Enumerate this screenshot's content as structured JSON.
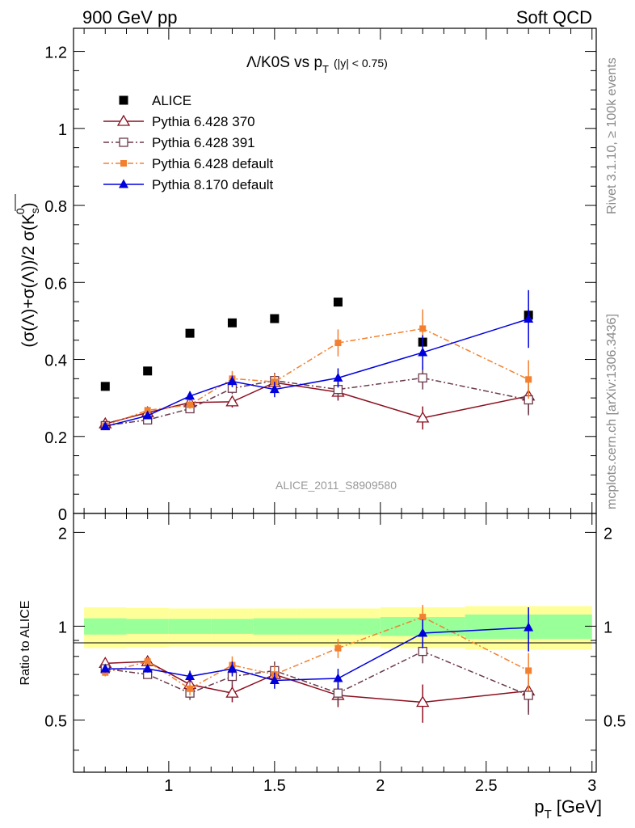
{
  "header": {
    "left": "900 GeV pp",
    "right": "Soft QCD"
  },
  "side_labels": {
    "rivet": "Rivet 3.1.10, ≥ 100k events",
    "mcplots": "mcplots.cern.ch [arXiv:1306.3436]"
  },
  "watermark": "ALICE_2011_S8909580",
  "colors": {
    "alice": "#000000",
    "py370": "#8b0f1f",
    "py391": "#6b3a4a",
    "py6def": "#f28030",
    "py8def": "#0000dd",
    "band_inner": "#99ff99",
    "band_outer": "#ffff99"
  },
  "chart_data": [
    {
      "type": "scatter",
      "title": "Λ/K0S vs p",
      "title_sub": "T",
      "title_cut": "(|y| < 0.75)",
      "ylabel": "(σ(Λ)+σ(Λ))/2 σ(K",
      "ylabel_sub": "s",
      "ylabel_sup": "0",
      "ylim": [
        0,
        1.26
      ],
      "yticks": [
        "0",
        "0.2",
        "0.4",
        "0.6",
        "0.8",
        "1",
        "1.2"
      ],
      "legend_position": "top-left",
      "series": [
        {
          "name": "ALICE",
          "marker": "filled-square",
          "line": "none",
          "x": [
            0.7,
            0.9,
            1.1,
            1.3,
            1.5,
            1.8,
            2.2,
            2.7
          ],
          "y": [
            0.33,
            0.37,
            0.468,
            0.495,
            0.506,
            0.549,
            0.445,
            0.515
          ],
          "yerr": [
            0.005,
            0.005,
            0.006,
            0.006,
            0.007,
            0.008,
            0.01,
            0.015
          ]
        },
        {
          "name": "Pythia 6.428 370",
          "marker": "open-triangle",
          "line": "solid",
          "x": [
            0.7,
            0.9,
            1.1,
            1.3,
            1.5,
            1.8,
            2.2,
            2.7
          ],
          "y": [
            0.233,
            0.262,
            0.288,
            0.29,
            0.34,
            0.315,
            0.248,
            0.305
          ],
          "yerr": [
            0.005,
            0.006,
            0.01,
            0.015,
            0.02,
            0.022,
            0.03,
            0.045
          ]
        },
        {
          "name": "Pythia 6.428 391",
          "marker": "open-square",
          "line": "dashdot",
          "x": [
            0.7,
            0.9,
            1.1,
            1.3,
            1.5,
            1.8,
            2.2,
            2.7
          ],
          "y": [
            0.228,
            0.243,
            0.272,
            0.325,
            0.345,
            0.322,
            0.352,
            0.295
          ],
          "yerr": [
            0.005,
            0.006,
            0.01,
            0.015,
            0.02,
            0.022,
            0.03,
            0.04
          ]
        },
        {
          "name": "Pythia 6.428 default",
          "marker": "filled-square-small",
          "line": "dashdot",
          "x": [
            0.7,
            0.9,
            1.1,
            1.3,
            1.5,
            1.8,
            2.2,
            2.7
          ],
          "y": [
            0.228,
            0.268,
            0.282,
            0.35,
            0.342,
            0.443,
            0.48,
            0.348
          ],
          "yerr": [
            0.005,
            0.006,
            0.01,
            0.02,
            0.02,
            0.035,
            0.05,
            0.05
          ]
        },
        {
          "name": "Pythia 8.170 default",
          "marker": "filled-triangle",
          "line": "solid",
          "x": [
            0.7,
            0.9,
            1.1,
            1.3,
            1.5,
            1.8,
            2.2,
            2.7
          ],
          "y": [
            0.226,
            0.254,
            0.305,
            0.343,
            0.322,
            0.352,
            0.418,
            0.505
          ],
          "yerr": [
            0.005,
            0.006,
            0.012,
            0.015,
            0.02,
            0.025,
            0.045,
            0.075
          ]
        }
      ]
    },
    {
      "type": "scatter",
      "ylabel": "Ratio to ALICE",
      "xlabel": "p",
      "xlabel_sub": "T",
      "xlabel_unit": "[GeV]",
      "xlim": [
        0.55,
        3.02
      ],
      "ylim": [
        0.34,
        2.3
      ],
      "xticks": [
        "1",
        "1.5",
        "2",
        "2.5",
        "3"
      ],
      "yticks": [
        "0.5",
        "1",
        "2"
      ],
      "log_y": true,
      "bands": {
        "edges": [
          0.6,
          0.8,
          1.0,
          1.2,
          1.4,
          1.6,
          2.0,
          2.4,
          3.0
        ],
        "inner": [
          0.06,
          0.055,
          0.055,
          0.055,
          0.06,
          0.06,
          0.07,
          0.09,
          0.1
        ],
        "outer": [
          0.15,
          0.145,
          0.14,
          0.14,
          0.14,
          0.14,
          0.15,
          0.16,
          0.2
        ]
      },
      "series": [
        {
          "name": "Pythia 6.428 370",
          "x": [
            0.7,
            0.9,
            1.1,
            1.3,
            1.5,
            1.8,
            2.2,
            2.7
          ],
          "y": [
            0.76,
            0.77,
            0.65,
            0.61,
            0.7,
            0.6,
            0.57,
            0.62
          ],
          "yerr": [
            0.02,
            0.02,
            0.03,
            0.04,
            0.05,
            0.05,
            0.08,
            0.09
          ]
        },
        {
          "name": "Pythia 6.428 391",
          "x": [
            0.7,
            0.9,
            1.1,
            1.3,
            1.5,
            1.8,
            2.2,
            2.7
          ],
          "y": [
            0.73,
            0.7,
            0.61,
            0.69,
            0.72,
            0.61,
            0.83,
            0.6
          ],
          "yerr": [
            0.02,
            0.02,
            0.03,
            0.04,
            0.05,
            0.05,
            0.07,
            0.08
          ]
        },
        {
          "name": "Pythia 6.428 default",
          "x": [
            0.7,
            0.9,
            1.1,
            1.3,
            1.5,
            1.8,
            2.2,
            2.7
          ],
          "y": [
            0.71,
            0.77,
            0.63,
            0.75,
            0.7,
            0.85,
            1.07,
            0.72
          ],
          "yerr": [
            0.02,
            0.02,
            0.03,
            0.05,
            0.05,
            0.06,
            0.1,
            0.1
          ]
        },
        {
          "name": "Pythia 8.170 default",
          "x": [
            0.7,
            0.9,
            1.1,
            1.3,
            1.5,
            1.8,
            2.2,
            2.7
          ],
          "y": [
            0.73,
            0.73,
            0.69,
            0.73,
            0.67,
            0.68,
            0.95,
            0.99
          ],
          "yerr": [
            0.02,
            0.02,
            0.03,
            0.04,
            0.04,
            0.05,
            0.1,
            0.16
          ]
        }
      ]
    }
  ]
}
